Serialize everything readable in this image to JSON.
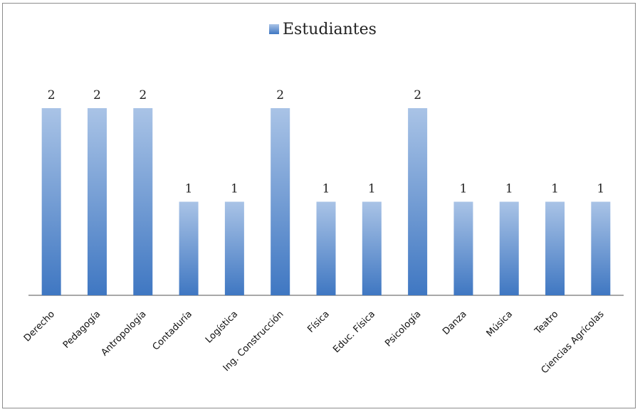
{
  "chart_data": {
    "type": "bar",
    "categories": [
      "Derecho",
      "Pedagogía",
      "Antropología",
      "Contaduría",
      "Logística",
      "Ing. Construcción",
      "Física",
      "Educ. Física",
      "Psicología",
      "Danza",
      "Música",
      "Teatro",
      "Ciencias  Agrícolas"
    ],
    "series": [
      {
        "name": "Estudiantes",
        "values": [
          2,
          2,
          2,
          1,
          1,
          2,
          1,
          1,
          2,
          1,
          1,
          1,
          1
        ]
      }
    ],
    "ylim": [
      0,
      2
    ],
    "grid": false,
    "legend_position": "top",
    "data_labels": true,
    "colors": {
      "bar_top": "#a9c3e6",
      "bar_bottom": "#3f77c2",
      "axis": "#8c8c8c"
    }
  }
}
